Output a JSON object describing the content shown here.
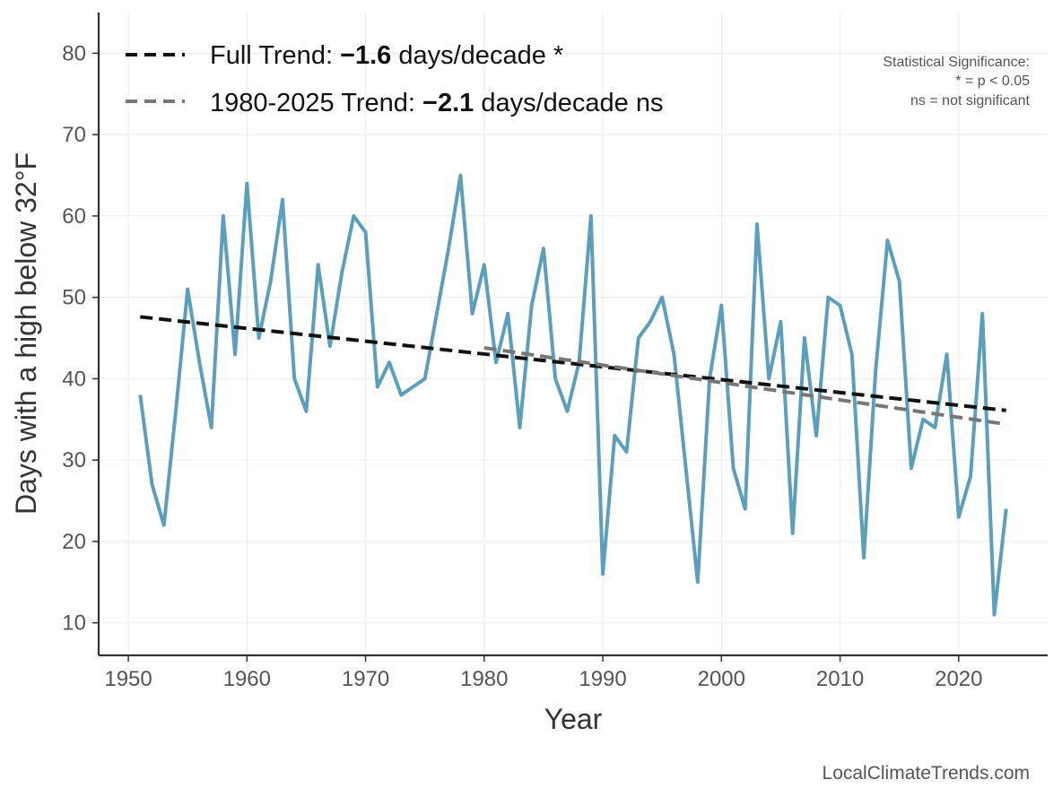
{
  "chart_data": {
    "type": "line",
    "xlabel": "Year",
    "ylabel": "Days with a high below 32°F",
    "xlim": [
      1947.5,
      2027.5
    ],
    "ylim": [
      6,
      85
    ],
    "x_ticks": [
      1950,
      1960,
      1970,
      1980,
      1990,
      2000,
      2010,
      2020
    ],
    "y_ticks": [
      10,
      20,
      30,
      40,
      50,
      60,
      70,
      80
    ],
    "grid": true,
    "legend_position": "top-left",
    "series": [
      {
        "color": "#5b9fbd",
        "style": "solid",
        "x": [
          1951,
          1952,
          1953,
          1954,
          1955,
          1956,
          1957,
          1958,
          1959,
          1960,
          1961,
          1962,
          1963,
          1964,
          1965,
          1966,
          1967,
          1968,
          1969,
          1970,
          1971,
          1972,
          1973,
          1974,
          1975,
          1976,
          1977,
          1978,
          1979,
          1980,
          1981,
          1982,
          1983,
          1984,
          1985,
          1986,
          1987,
          1988,
          1989,
          1990,
          1991,
          1992,
          1993,
          1994,
          1995,
          1996,
          1997,
          1998,
          1999,
          2000,
          2001,
          2002,
          2003,
          2004,
          2005,
          2006,
          2007,
          2008,
          2009,
          2010,
          2011,
          2012,
          2013,
          2014,
          2015,
          2016,
          2017,
          2018,
          2019,
          2020,
          2021,
          2022,
          2023,
          2024
        ],
        "values": [
          38,
          27,
          22,
          36,
          51,
          42,
          34,
          60,
          43,
          64,
          45,
          52,
          62,
          40,
          36,
          54,
          44,
          53,
          60,
          58,
          39,
          42,
          38,
          39,
          40,
          48,
          56,
          65,
          48,
          54,
          42,
          48,
          34,
          49,
          56,
          40,
          36,
          42,
          60,
          16,
          33,
          31,
          45,
          47,
          50,
          43,
          29,
          15,
          40,
          49,
          29,
          24,
          59,
          40,
          47,
          21,
          45,
          33,
          50,
          49,
          43,
          18,
          41,
          57,
          52,
          29,
          35,
          34,
          43,
          23,
          28,
          48,
          11,
          24
        ]
      },
      {
        "name": "Full Trend",
        "color": "#111111",
        "style": "dashed",
        "x": [
          1951,
          2024
        ],
        "values": [
          47.6,
          36.1
        ]
      },
      {
        "name": "1980-2025 Trend",
        "color": "#777777",
        "style": "dashed",
        "x": [
          1980,
          2024
        ],
        "values": [
          43.8,
          34.4
        ]
      }
    ],
    "legend": [
      {
        "prefix": "Full Trend: ",
        "value": "−1.6",
        "suffix": " days/decade *"
      },
      {
        "prefix": "1980-2025 Trend: ",
        "value": "−2.1",
        "suffix": " days/decade ns"
      }
    ],
    "annotations": {
      "significance_lines": [
        "Statistical Significance:",
        "* = p < 0.05",
        "ns = not significant"
      ],
      "source": "LocalClimateTrends.com"
    }
  }
}
